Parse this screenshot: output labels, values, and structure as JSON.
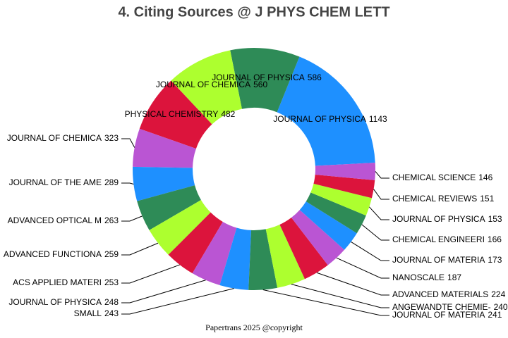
{
  "chart_data": {
    "type": "pie",
    "title": "4. Citing Sources @ J PHYS CHEM LETT",
    "categories": [
      "JOURNAL OF PHYSICA",
      "JOURNAL OF PHYSICA",
      "JOURNAL OF CHEMICA",
      "PHYSICAL CHEMISTRY",
      "JOURNAL OF CHEMICA",
      "JOURNAL OF THE AME",
      "ADVANCED OPTICAL M",
      "ADVANCED FUNCTIONA",
      "ACS APPLIED MATERI",
      "JOURNAL OF PHYSICA",
      "SMALL",
      "JOURNAL OF MATERIA",
      "ANGEWANDTE CHEMIE-",
      "ADVANCED MATERIALS",
      "NANOSCALE",
      "JOURNAL OF MATERIA",
      "CHEMICAL ENGINEERI",
      "JOURNAL OF PHYSICA",
      "CHEMICAL REVIEWS",
      "CHEMICAL SCIENCE"
    ],
    "values": [
      1143,
      586,
      560,
      482,
      323,
      289,
      263,
      259,
      253,
      248,
      243,
      241,
      240,
      224,
      187,
      173,
      166,
      153,
      151,
      146
    ],
    "colors": [
      "#1e90ff",
      "#2e8b57",
      "#adff2f",
      "#dc143c",
      "#ba55d3",
      "#1e90ff",
      "#2e8b57",
      "#adff2f",
      "#dc143c",
      "#ba55d3",
      "#1e90ff",
      "#2e8b57",
      "#adff2f",
      "#dc143c",
      "#ba55d3",
      "#1e90ff",
      "#2e8b57",
      "#adff2f",
      "#dc143c",
      "#ba55d3"
    ],
    "hole": true,
    "footer": "Papertrans 2025 @copyright"
  }
}
